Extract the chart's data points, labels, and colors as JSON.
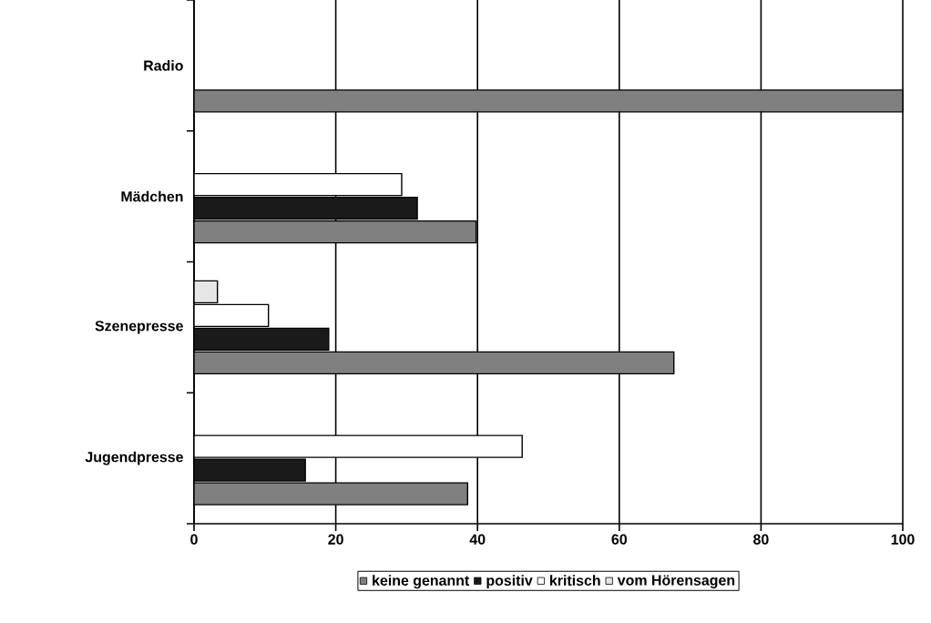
{
  "chart_data": {
    "type": "bar",
    "orientation": "horizontal",
    "categories": [
      "Radio",
      "Mädchen",
      "Szenepresse",
      "Jugendpresse"
    ],
    "series": [
      {
        "name": "keine genannt",
        "color": "#808080",
        "values": [
          100,
          39.8,
          67.7,
          38.6
        ]
      },
      {
        "name": "positiv",
        "color": "#1a1a1a",
        "values": [
          null,
          31.5,
          19,
          15.7
        ]
      },
      {
        "name": "kritisch",
        "color": "#ffffff",
        "values": [
          null,
          29.3,
          10.5,
          46.3
        ]
      },
      {
        "name": "vom Hörensagen",
        "color": "#e6e6e6",
        "values": [
          null,
          null,
          3.3,
          null
        ]
      }
    ],
    "xlim": [
      0,
      100
    ],
    "xticks": [
      0,
      20,
      40,
      60,
      80,
      100
    ],
    "grid": "x",
    "legend": "bottom"
  }
}
